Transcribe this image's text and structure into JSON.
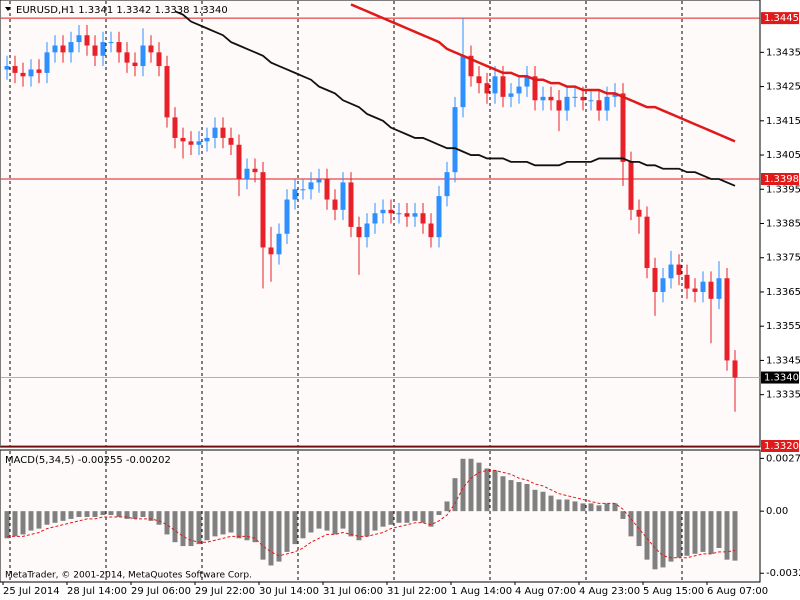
{
  "chart_data": [
    {
      "type": "candlestick",
      "title": "EURUSD,H1  1.3341 1.3342 1.3338 1.3340",
      "categories": [
        "25 Jul 2014",
        null,
        null,
        null,
        null,
        null,
        null,
        null,
        "28 Jul 14:00",
        null,
        null,
        null,
        null,
        null,
        null,
        null,
        "29 Jul 06:00",
        null,
        null,
        null,
        null,
        null,
        null,
        null,
        "29 Jul 22:00",
        null,
        null,
        null,
        null,
        null,
        null,
        null,
        "30 Jul 14:00",
        null,
        null,
        null,
        null,
        null,
        null,
        null,
        "31 Jul 06:00",
        null,
        null,
        null,
        null,
        null,
        null,
        null,
        "31 Jul 22:00",
        null,
        null,
        null,
        null,
        null,
        null,
        null,
        "1 Aug 14:00",
        null,
        null,
        null,
        null,
        null,
        null,
        null,
        "4 Aug 07:00",
        null,
        null,
        null,
        null,
        null,
        null,
        null,
        "4 Aug 23:00",
        null,
        null,
        null,
        null,
        null,
        null,
        null,
        "5 Aug 15:00",
        null,
        null,
        null,
        null,
        null,
        null,
        null,
        "6 Aug 07:00",
        null,
        null,
        null
      ],
      "candles": [
        [
          1.343,
          1.3434,
          1.3427,
          1.3431
        ],
        [
          1.3431,
          1.3434,
          1.3426,
          1.3429
        ],
        [
          1.3429,
          1.3432,
          1.3425,
          1.3428
        ],
        [
          1.3428,
          1.3433,
          1.3425,
          1.343
        ],
        [
          1.343,
          1.3433,
          1.3426,
          1.3429
        ],
        [
          1.3429,
          1.3438,
          1.3426,
          1.3435
        ],
        [
          1.3435,
          1.344,
          1.3432,
          1.3437
        ],
        [
          1.3437,
          1.344,
          1.3432,
          1.3435
        ],
        [
          1.3435,
          1.3441,
          1.3432,
          1.3438
        ],
        [
          1.3438,
          1.3443,
          1.3435,
          1.344
        ],
        [
          1.344,
          1.3443,
          1.3434,
          1.3437
        ],
        [
          1.3437,
          1.344,
          1.3431,
          1.3434
        ],
        [
          1.3434,
          1.3441,
          1.3431,
          1.3438
        ],
        [
          1.3438,
          1.3441,
          1.3435,
          1.3438
        ],
        [
          1.3438,
          1.3441,
          1.3432,
          1.3435
        ],
        [
          1.3435,
          1.3438,
          1.3429,
          1.3432
        ],
        [
          1.3432,
          1.3435,
          1.3428,
          1.3431
        ],
        [
          1.3431,
          1.3442,
          1.3428,
          1.3437
        ],
        [
          1.3437,
          1.344,
          1.3432,
          1.3435
        ],
        [
          1.3435,
          1.3438,
          1.3428,
          1.3431
        ],
        [
          1.3431,
          1.3434,
          1.3413,
          1.3416
        ],
        [
          1.3416,
          1.3419,
          1.3407,
          1.341
        ],
        [
          1.341,
          1.3413,
          1.3404,
          1.3409
        ],
        [
          1.3409,
          1.3412,
          1.3405,
          1.3408
        ],
        [
          1.3408,
          1.3412,
          1.3405,
          1.3409
        ],
        [
          1.3409,
          1.3413,
          1.3406,
          1.341
        ],
        [
          1.341,
          1.3416,
          1.3407,
          1.3413
        ],
        [
          1.3413,
          1.3416,
          1.3407,
          1.341
        ],
        [
          1.341,
          1.3413,
          1.3405,
          1.3408
        ],
        [
          1.3408,
          1.3411,
          1.3393,
          1.3398
        ],
        [
          1.3398,
          1.3404,
          1.3395,
          1.3401
        ],
        [
          1.3401,
          1.3404,
          1.3397,
          1.34
        ],
        [
          1.34,
          1.3403,
          1.3366,
          1.3378
        ],
        [
          1.3378,
          1.3384,
          1.3368,
          1.3376
        ],
        [
          1.3376,
          1.3385,
          1.3373,
          1.3382
        ],
        [
          1.3382,
          1.3395,
          1.3379,
          1.3392
        ],
        [
          1.3392,
          1.3398,
          1.3389,
          1.3395
        ],
        [
          1.3395,
          1.3398,
          1.3392,
          1.3395
        ],
        [
          1.3395,
          1.34,
          1.3392,
          1.3397
        ],
        [
          1.3397,
          1.3401,
          1.3394,
          1.3398
        ],
        [
          1.3398,
          1.3401,
          1.3389,
          1.3392
        ],
        [
          1.3392,
          1.3395,
          1.3386,
          1.3389
        ],
        [
          1.3389,
          1.34,
          1.3386,
          1.3397
        ],
        [
          1.3397,
          1.34,
          1.3381,
          1.3384
        ],
        [
          1.3384,
          1.3387,
          1.337,
          1.3381
        ],
        [
          1.3381,
          1.3388,
          1.3378,
          1.3385
        ],
        [
          1.3385,
          1.3391,
          1.3382,
          1.3388
        ],
        [
          1.3388,
          1.3392,
          1.3385,
          1.3389
        ],
        [
          1.3389,
          1.3392,
          1.3385,
          1.3388
        ],
        [
          1.3388,
          1.3391,
          1.3385,
          1.3388
        ],
        [
          1.3388,
          1.3391,
          1.3384,
          1.3387
        ],
        [
          1.3387,
          1.3391,
          1.3384,
          1.3388
        ],
        [
          1.3388,
          1.3391,
          1.3382,
          1.3385
        ],
        [
          1.3385,
          1.3388,
          1.3378,
          1.3381
        ],
        [
          1.3381,
          1.3396,
          1.3378,
          1.3393
        ],
        [
          1.3393,
          1.3403,
          1.339,
          1.34
        ],
        [
          1.34,
          1.3422,
          1.3397,
          1.3419
        ],
        [
          1.3419,
          1.3445,
          1.3416,
          1.3434
        ],
        [
          1.3434,
          1.3437,
          1.3425,
          1.3428
        ],
        [
          1.3428,
          1.3431,
          1.3423,
          1.3426
        ],
        [
          1.3426,
          1.3429,
          1.342,
          1.3423
        ],
        [
          1.3423,
          1.3431,
          1.342,
          1.3428
        ],
        [
          1.3428,
          1.3431,
          1.3419,
          1.3422
        ],
        [
          1.3422,
          1.3426,
          1.3419,
          1.3423
        ],
        [
          1.3423,
          1.3428,
          1.342,
          1.3425
        ],
        [
          1.3425,
          1.3431,
          1.3422,
          1.3428
        ],
        [
          1.3428,
          1.3431,
          1.3418,
          1.3421
        ],
        [
          1.3421,
          1.3425,
          1.3418,
          1.3422
        ],
        [
          1.3422,
          1.3425,
          1.3418,
          1.3421
        ],
        [
          1.3421,
          1.3424,
          1.3412,
          1.3418
        ],
        [
          1.3418,
          1.3425,
          1.3415,
          1.3422
        ],
        [
          1.3422,
          1.3425,
          1.3419,
          1.3422
        ],
        [
          1.3422,
          1.3425,
          1.3418,
          1.3421
        ],
        [
          1.3421,
          1.3424,
          1.3418,
          1.3421
        ],
        [
          1.3421,
          1.3424,
          1.3415,
          1.3418
        ],
        [
          1.3418,
          1.3425,
          1.3415,
          1.3422
        ],
        [
          1.3422,
          1.3426,
          1.3419,
          1.3423
        ],
        [
          1.3423,
          1.3426,
          1.3396,
          1.3403
        ],
        [
          1.3403,
          1.3406,
          1.3386,
          1.3389
        ],
        [
          1.3389,
          1.3392,
          1.3382,
          1.3387
        ],
        [
          1.3387,
          1.339,
          1.3369,
          1.3372
        ],
        [
          1.3372,
          1.3375,
          1.3358,
          1.3365
        ],
        [
          1.3365,
          1.3372,
          1.3362,
          1.3369
        ],
        [
          1.3369,
          1.3377,
          1.3366,
          1.3373
        ],
        [
          1.3373,
          1.3376,
          1.3367,
          1.337
        ],
        [
          1.337,
          1.3373,
          1.3363,
          1.3366
        ],
        [
          1.3366,
          1.3369,
          1.3362,
          1.3365
        ],
        [
          1.3365,
          1.3371,
          1.3362,
          1.3368
        ],
        [
          1.3368,
          1.3371,
          1.335,
          1.3363
        ],
        [
          1.3363,
          1.3374,
          1.336,
          1.3369
        ],
        [
          1.3369,
          1.3372,
          1.3342,
          1.3345
        ],
        [
          1.3345,
          1.3348,
          1.333,
          1.334
        ]
      ],
      "up_color": "#2e8fff",
      "down_color": "#e8202a",
      "series": [
        {
          "color": "#e01a1a",
          "values": [
            null,
            null,
            null,
            null,
            null,
            null,
            null,
            null,
            null,
            null,
            null,
            null,
            null,
            null,
            null,
            null,
            null,
            null,
            null,
            null,
            null,
            null,
            null,
            null,
            null,
            null,
            null,
            null,
            null,
            null,
            null,
            null,
            null,
            null,
            null,
            null,
            null,
            null,
            null,
            null,
            null,
            null,
            null,
            1.3449,
            1.3448,
            1.3447,
            1.3446,
            1.3445,
            1.3444,
            1.3443,
            1.3442,
            1.3441,
            1.344,
            1.3439,
            1.3438,
            1.3436,
            1.3435,
            1.3434,
            1.3433,
            1.3432,
            1.3431,
            1.343,
            1.3429,
            1.3429,
            1.3428,
            1.3428,
            1.3427,
            1.3427,
            1.3426,
            1.3426,
            1.3425,
            1.3425,
            1.3424,
            1.3424,
            1.3424,
            1.3423,
            1.3423,
            1.3422,
            1.3421,
            1.342,
            1.3419,
            1.3419,
            1.3418,
            1.3417,
            1.3416,
            1.3415,
            1.3414,
            1.3413,
            1.3412,
            1.3411,
            1.341,
            1.3409
          ]
        },
        {
          "color": "#111111",
          "values": [
            null,
            null,
            null,
            null,
            null,
            null,
            null,
            null,
            null,
            null,
            null,
            null,
            null,
            null,
            null,
            null,
            null,
            null,
            null,
            null,
            null,
            1.3447,
            1.3446,
            1.3444,
            1.3443,
            1.3442,
            1.3441,
            1.344,
            1.3438,
            1.3437,
            1.3436,
            1.3435,
            1.3434,
            1.3432,
            1.3431,
            1.343,
            1.3429,
            1.3428,
            1.3427,
            1.3425,
            1.3424,
            1.3423,
            1.3421,
            1.342,
            1.3419,
            1.3417,
            1.3416,
            1.3415,
            1.3413,
            1.3412,
            1.3411,
            1.341,
            1.341,
            1.3409,
            1.3408,
            1.3407,
            1.3407,
            1.3406,
            1.3405,
            1.3405,
            1.3404,
            1.3404,
            1.3404,
            1.3403,
            1.3403,
            1.3403,
            1.3402,
            1.3402,
            1.3402,
            1.3402,
            1.3403,
            1.3403,
            1.3403,
            1.3403,
            1.3404,
            1.3404,
            1.3404,
            1.3404,
            1.3403,
            1.3403,
            1.3402,
            1.3402,
            1.3401,
            1.3401,
            1.3401,
            1.34,
            1.34,
            1.3399,
            1.3398,
            1.3398,
            1.3397,
            1.3396
          ]
        }
      ],
      "levels": [
        {
          "value": 1.3445,
          "color": "#e01a1a"
        },
        {
          "value": 1.3398,
          "color": "#e01a1a"
        },
        {
          "value": 1.334,
          "label": "1.3340",
          "color": "#000000"
        },
        {
          "value": 1.332,
          "label": "1.3320",
          "color": "#e01a1a"
        }
      ],
      "ylim": [
        1.332,
        1.345
      ],
      "yticks": [
        1.3435,
        1.3425,
        1.3415,
        1.3405,
        1.3395,
        1.3385,
        1.3375,
        1.3365,
        1.3355,
        1.3345,
        1.3335
      ]
    },
    {
      "type": "bar",
      "title": "MACD(5,34,5) -0.00255 -0.00202",
      "annotation": "MetaTrader, © 2001-2014, MetaQuotes Software Corp.",
      "series": [
        {
          "color": "#808080",
          "values": [
            -0.0014,
            -0.0013,
            -0.0012,
            -0.001,
            -0.0009,
            -0.0007,
            -0.0006,
            -0.0005,
            -0.0004,
            -0.0003,
            -0.0003,
            -0.0003,
            -0.0002,
            -0.0002,
            -0.0003,
            -0.0004,
            -0.0004,
            -0.0003,
            -0.0005,
            -0.0007,
            -0.0012,
            -0.0016,
            -0.0018,
            -0.0018,
            -0.0017,
            -0.0015,
            -0.0013,
            -0.0012,
            -0.0011,
            -0.0014,
            -0.0015,
            -0.0016,
            -0.0025,
            -0.0028,
            -0.0026,
            -0.0021,
            -0.0017,
            -0.0014,
            -0.0011,
            -0.0009,
            -0.001,
            -0.0012,
            -0.0009,
            -0.0013,
            -0.0015,
            -0.0013,
            -0.001,
            -0.0008,
            -0.0007,
            -0.0006,
            -0.0006,
            -0.0005,
            -0.0006,
            -0.0008,
            -0.0002,
            0.0005,
            0.0017,
            0.0027,
            0.0027,
            0.0025,
            0.0022,
            0.0021,
            0.0018,
            0.0016,
            0.0015,
            0.0014,
            0.0011,
            0.001,
            0.0008,
            0.0006,
            0.0006,
            0.0005,
            0.0004,
            0.0004,
            0.0003,
            0.0004,
            0.0004,
            -0.0004,
            -0.0013,
            -0.0018,
            -0.0025,
            -0.003,
            -0.0029,
            -0.0026,
            -0.0024,
            -0.0023,
            -0.0022,
            -0.0021,
            -0.0022,
            -0.0019,
            -0.0025,
            -0.00255
          ]
        },
        {
          "color": "#e01a1a",
          "values": [
            -0.0013,
            -0.0013,
            -0.0013,
            -0.0012,
            -0.0011,
            -0.0009,
            -0.0008,
            -0.0007,
            -0.0006,
            -0.0005,
            -0.0004,
            -0.0004,
            -0.0003,
            -0.0003,
            -0.0003,
            -0.0003,
            -0.0004,
            -0.0004,
            -0.0004,
            -0.0005,
            -0.0007,
            -0.001,
            -0.0013,
            -0.0015,
            -0.0016,
            -0.0016,
            -0.0015,
            -0.0014,
            -0.0013,
            -0.0013,
            -0.0013,
            -0.0014,
            -0.0018,
            -0.0021,
            -0.0023,
            -0.0022,
            -0.0021,
            -0.0019,
            -0.0016,
            -0.0014,
            -0.0012,
            -0.0012,
            -0.0011,
            -0.0012,
            -0.0013,
            -0.0013,
            -0.0012,
            -0.0011,
            -0.0009,
            -0.0008,
            -0.0007,
            -0.0006,
            -0.0006,
            -0.0007,
            -0.0005,
            -0.0002,
            0.0004,
            0.0012,
            0.0017,
            0.002,
            0.0021,
            0.0021,
            0.002,
            0.0019,
            0.0017,
            0.0016,
            0.0014,
            0.0013,
            0.0011,
            0.0009,
            0.0008,
            0.0007,
            0.0006,
            0.0005,
            0.0004,
            0.0004,
            0.0004,
            0.0001,
            -0.0004,
            -0.0009,
            -0.0014,
            -0.0019,
            -0.0023,
            -0.0024,
            -0.0024,
            -0.0024,
            -0.0023,
            -0.0022,
            -0.0022,
            -0.0021,
            -0.0021,
            -0.00202
          ]
        }
      ],
      "ylim": [
        -0.0036,
        0.0031
      ],
      "yticks": [
        0.00272,
        {
          "value": 0,
          "label": "0.00"
        },
        -0.0032
      ]
    }
  ]
}
